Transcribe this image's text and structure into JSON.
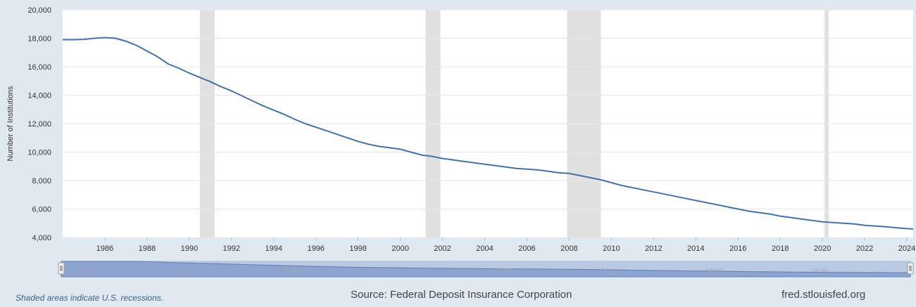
{
  "chart_data": {
    "type": "line",
    "title": "",
    "ylabel": "Number of Institutions",
    "xlabel": "",
    "xlim": [
      1984.0,
      2024.3
    ],
    "ylim": [
      4000,
      20000
    ],
    "y_ticks": [
      "4,000",
      "6,000",
      "8,000",
      "10,000",
      "12,000",
      "14,000",
      "16,000",
      "18,000",
      "20,000"
    ],
    "y_tick_values": [
      4000,
      6000,
      8000,
      10000,
      12000,
      14000,
      16000,
      18000,
      20000
    ],
    "x_ticks": [
      "1986",
      "1988",
      "1990",
      "1992",
      "1994",
      "1996",
      "1998",
      "2000",
      "2002",
      "2004",
      "2006",
      "2008",
      "2010",
      "2012",
      "2014",
      "2016",
      "2018",
      "2020",
      "2022",
      "2024"
    ],
    "x_tick_values": [
      1986,
      1988,
      1990,
      1992,
      1994,
      1996,
      1998,
      2000,
      2002,
      2004,
      2006,
      2008,
      2010,
      2012,
      2014,
      2016,
      2018,
      2020,
      2022,
      2024
    ],
    "grid": true,
    "line_color": "#4572a7",
    "recessions": [
      [
        1990.5,
        1991.2
      ],
      [
        2001.2,
        2001.9
      ],
      [
        2007.9,
        2009.5
      ],
      [
        2020.1,
        2020.3
      ]
    ],
    "recession_color": "#e1e1e1",
    "series": [
      {
        "x": [
          1984.0,
          1984.5,
          1985.0,
          1985.5,
          1986.0,
          1986.5,
          1987.0,
          1987.5,
          1988.0,
          1988.5,
          1989.0,
          1989.5,
          1990.0,
          1990.5,
          1991.0,
          1991.5,
          1992.0,
          1992.5,
          1993.0,
          1993.5,
          1994.0,
          1994.5,
          1995.0,
          1995.5,
          1996.0,
          1996.5,
          1997.0,
          1997.5,
          1998.0,
          1998.5,
          1999.0,
          1999.5,
          2000.0,
          2000.5,
          2001.0,
          2001.5,
          2002.0,
          2002.5,
          2003.0,
          2003.5,
          2004.0,
          2004.5,
          2005.0,
          2005.5,
          2006.0,
          2006.5,
          2007.0,
          2007.5,
          2008.0,
          2008.5,
          2009.0,
          2009.5,
          2010.0,
          2010.5,
          2011.0,
          2011.5,
          2012.0,
          2012.5,
          2013.0,
          2013.5,
          2014.0,
          2014.5,
          2015.0,
          2015.5,
          2016.0,
          2016.5,
          2017.0,
          2017.5,
          2018.0,
          2018.5,
          2019.0,
          2019.5,
          2020.0,
          2020.5,
          2021.0,
          2021.5,
          2022.0,
          2022.5,
          2023.0,
          2023.5,
          2024.0,
          2024.3
        ],
        "values": [
          17900,
          17900,
          17920,
          18000,
          18050,
          18000,
          17800,
          17500,
          17100,
          16700,
          16200,
          15900,
          15550,
          15250,
          14950,
          14600,
          14300,
          13950,
          13600,
          13250,
          12950,
          12650,
          12300,
          12000,
          11750,
          11500,
          11250,
          11000,
          10750,
          10550,
          10400,
          10300,
          10200,
          10000,
          9800,
          9700,
          9550,
          9450,
          9350,
          9250,
          9150,
          9050,
          8950,
          8850,
          8800,
          8750,
          8650,
          8550,
          8500,
          8350,
          8200,
          8050,
          7850,
          7650,
          7500,
          7350,
          7200,
          7050,
          6900,
          6750,
          6600,
          6450,
          6300,
          6150,
          6000,
          5850,
          5750,
          5650,
          5500,
          5400,
          5300,
          5200,
          5100,
          5050,
          5000,
          4950,
          4850,
          4800,
          4750,
          4680,
          4620,
          4600
        ]
      }
    ]
  },
  "navigator": {
    "labels": [
      "1985",
      "1990",
      "1995",
      "2000",
      "2005",
      "2010",
      "2015",
      "2020"
    ],
    "label_values": [
      1985,
      1990,
      1995,
      2000,
      2005,
      2010,
      2015,
      2020
    ]
  },
  "footer": {
    "note": "Shaded areas indicate U.S. recessions.",
    "source": "Source: Federal Deposit Insurance Corporation",
    "site": "fred.stlouisfed.org"
  }
}
